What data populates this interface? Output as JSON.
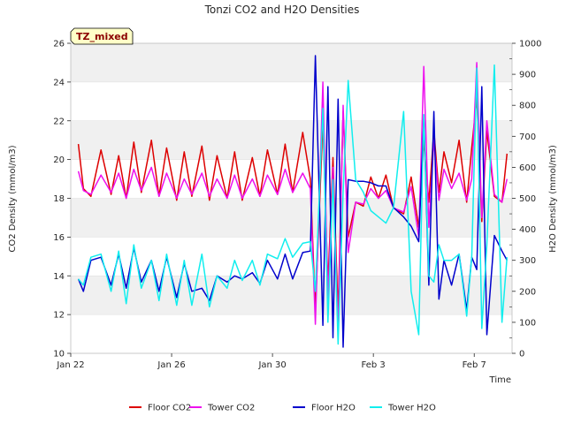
{
  "chart_data": {
    "type": "line",
    "title": "Tonzi CO2 and H2O Densities",
    "badge": "TZ_mixed",
    "xlabel": "Time",
    "ylabel_left": "CO2 Density (mmol/m3)",
    "ylabel_right": "H2O Density (mmol/m3)",
    "xlim": [
      0,
      17.5
    ],
    "ylim_left": [
      10,
      26
    ],
    "ylim_right": [
      0,
      1000
    ],
    "x_ticks": [
      {
        "x": 0,
        "label": "Jan 22"
      },
      {
        "x": 4,
        "label": "Jan 26"
      },
      {
        "x": 8,
        "label": "Jan 30"
      },
      {
        "x": 12,
        "label": "Feb 3"
      },
      {
        "x": 16,
        "label": "Feb 7"
      }
    ],
    "y_ticks_left": [
      "10",
      "12",
      "14",
      "16",
      "18",
      "20",
      "22",
      "24",
      "26"
    ],
    "y_ticks_right": [
      "0",
      "100",
      "200",
      "300",
      "400",
      "500",
      "600",
      "700",
      "800",
      "900",
      "1000"
    ],
    "grid": "horizontal bands",
    "legend_position": "bottom-center",
    "colors": {
      "floor_co2": "#dd0000",
      "tower_co2": "#ee11ee",
      "floor_h2o": "#0000cc",
      "tower_h2o": "#11eeee"
    },
    "series": [
      {
        "name": "Floor CO2",
        "axis": "left",
        "color": "#dd0000",
        "x": [
          0.3,
          0.5,
          0.8,
          1.2,
          1.6,
          1.9,
          2.2,
          2.5,
          2.8,
          3.2,
          3.5,
          3.8,
          4.2,
          4.5,
          4.8,
          5.2,
          5.5,
          5.8,
          6.2,
          6.5,
          6.8,
          7.2,
          7.5,
          7.8,
          8.2,
          8.5,
          8.8,
          9.2,
          9.5,
          9.7,
          10.0,
          10.2,
          10.4,
          10.6,
          10.8,
          11.0,
          11.3,
          11.6,
          11.9,
          12.2,
          12.5,
          12.8,
          13.2,
          13.5,
          13.8,
          14.0,
          14.2,
          14.4,
          14.6,
          14.8,
          15.1,
          15.4,
          15.7,
          15.9,
          16.1,
          16.3,
          16.5,
          16.8,
          17.1,
          17.3
        ],
        "y": [
          20.8,
          18.5,
          18.1,
          20.5,
          18.2,
          20.2,
          18.0,
          20.9,
          18.3,
          21.0,
          18.1,
          20.6,
          17.9,
          20.4,
          18.1,
          20.7,
          17.9,
          20.2,
          18.0,
          20.4,
          17.9,
          20.1,
          18.1,
          20.5,
          18.2,
          20.8,
          18.3,
          21.4,
          19.0,
          12.2,
          22.0,
          13.5,
          20.1,
          12.0,
          22.5,
          16.0,
          17.8,
          17.6,
          19.1,
          18.0,
          19.2,
          17.5,
          17.2,
          19.1,
          16.5,
          21.0,
          17.8,
          21.5,
          18.3,
          20.4,
          18.8,
          21.0,
          17.8,
          20.6,
          23.2,
          16.8,
          21.5,
          18.1,
          17.8,
          20.3
        ]
      },
      {
        "name": "Tower CO2",
        "axis": "left",
        "color": "#ee11ee",
        "x": [
          0.3,
          0.5,
          0.8,
          1.2,
          1.6,
          1.9,
          2.2,
          2.5,
          2.8,
          3.2,
          3.5,
          3.8,
          4.2,
          4.5,
          4.8,
          5.2,
          5.5,
          5.8,
          6.2,
          6.5,
          6.8,
          7.2,
          7.5,
          7.8,
          8.2,
          8.5,
          8.8,
          9.2,
          9.5,
          9.7,
          10.0,
          10.2,
          10.4,
          10.6,
          10.8,
          11.0,
          11.3,
          11.6,
          11.9,
          12.2,
          12.5,
          12.8,
          13.2,
          13.5,
          13.8,
          14.0,
          14.2,
          14.4,
          14.6,
          14.8,
          15.1,
          15.4,
          15.7,
          15.9,
          16.1,
          16.3,
          16.5,
          16.8,
          17.1,
          17.3
        ],
        "y": [
          19.4,
          18.4,
          18.2,
          19.2,
          18.3,
          19.3,
          18.0,
          19.5,
          18.4,
          19.6,
          18.1,
          19.3,
          18.0,
          19.0,
          18.2,
          19.3,
          18.1,
          19.0,
          18.0,
          19.2,
          18.0,
          19.0,
          18.1,
          19.2,
          18.2,
          19.5,
          18.3,
          19.3,
          18.5,
          11.5,
          24.0,
          12.8,
          19.6,
          11.0,
          22.8,
          15.2,
          17.8,
          17.7,
          18.5,
          18.0,
          18.4,
          17.5,
          17.3,
          18.6,
          16.0,
          24.8,
          16.5,
          21.0,
          17.9,
          19.5,
          18.5,
          19.3,
          17.9,
          19.0,
          25.0,
          17.0,
          22.0,
          18.2,
          17.8,
          19.0
        ]
      },
      {
        "name": "Floor H2O",
        "axis": "right",
        "color": "#0000cc",
        "x": [
          0.3,
          0.5,
          0.8,
          1.2,
          1.6,
          1.9,
          2.2,
          2.5,
          2.8,
          3.2,
          3.5,
          3.8,
          4.2,
          4.5,
          4.8,
          5.2,
          5.5,
          5.8,
          6.2,
          6.5,
          6.8,
          7.2,
          7.5,
          7.8,
          8.2,
          8.5,
          8.8,
          9.2,
          9.5,
          9.7,
          10.0,
          10.2,
          10.4,
          10.6,
          10.8,
          11.0,
          11.3,
          11.6,
          11.9,
          12.2,
          12.5,
          12.8,
          13.2,
          13.5,
          13.8,
          14.0,
          14.2,
          14.4,
          14.6,
          14.8,
          15.1,
          15.4,
          15.7,
          15.9,
          16.1,
          16.3,
          16.5,
          16.8,
          17.1,
          17.3
        ],
        "y": [
          240,
          200,
          300,
          310,
          220,
          320,
          210,
          340,
          230,
          300,
          200,
          310,
          180,
          290,
          200,
          210,
          170,
          250,
          230,
          250,
          240,
          260,
          225,
          300,
          240,
          320,
          240,
          325,
          330,
          960,
          90,
          860,
          50,
          820,
          20,
          560,
          555,
          555,
          550,
          540,
          540,
          470,
          440,
          410,
          360,
          760,
          220,
          780,
          175,
          300,
          220,
          320,
          140,
          310,
          270,
          860,
          60,
          380,
          330,
          300
        ]
      },
      {
        "name": "Tower H2O",
        "axis": "right",
        "color": "#11eeee",
        "x": [
          0.3,
          0.5,
          0.8,
          1.2,
          1.6,
          1.9,
          2.2,
          2.5,
          2.8,
          3.2,
          3.5,
          3.8,
          4.2,
          4.5,
          4.8,
          5.2,
          5.5,
          5.8,
          6.2,
          6.5,
          6.8,
          7.2,
          7.5,
          7.8,
          8.2,
          8.5,
          8.8,
          9.2,
          9.5,
          9.7,
          10.0,
          10.2,
          10.4,
          10.6,
          10.8,
          11.0,
          11.3,
          11.6,
          11.9,
          12.2,
          12.5,
          12.8,
          13.2,
          13.5,
          13.8,
          14.0,
          14.2,
          14.4,
          14.6,
          14.8,
          15.1,
          15.4,
          15.7,
          15.9,
          16.1,
          16.3,
          16.5,
          16.8,
          17.1,
          17.3
        ],
        "y": [
          240,
          220,
          310,
          320,
          200,
          330,
          160,
          350,
          210,
          300,
          170,
          320,
          155,
          300,
          155,
          320,
          150,
          250,
          210,
          300,
          235,
          300,
          220,
          320,
          305,
          370,
          310,
          355,
          360,
          200,
          790,
          100,
          560,
          30,
          520,
          880,
          560,
          520,
          460,
          440,
          420,
          470,
          780,
          200,
          60,
          770,
          250,
          230,
          350,
          300,
          300,
          320,
          120,
          310,
          920,
          80,
          350,
          930,
          100,
          310
        ]
      }
    ]
  }
}
